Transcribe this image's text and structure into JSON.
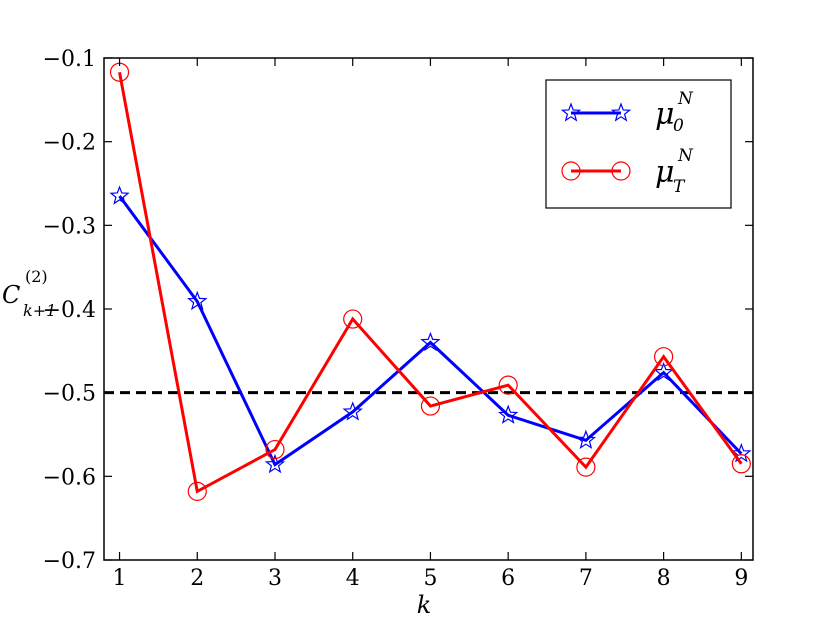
{
  "chart_data": {
    "type": "line",
    "title": "",
    "xlabel": "k",
    "ylabel": {
      "base": "C",
      "superscript": "(2)",
      "subscript": "k+1"
    },
    "x": [
      1,
      2,
      3,
      4,
      5,
      6,
      7,
      8,
      9
    ],
    "xlim": [
      0.8,
      9.15
    ],
    "ylim": [
      -0.7,
      -0.1
    ],
    "xticks": [
      "1",
      "2",
      "3",
      "4",
      "5",
      "6",
      "7",
      "8",
      "9"
    ],
    "yticks": [
      -0.7,
      -0.6,
      -0.5,
      -0.4,
      -0.3,
      -0.2,
      -0.1
    ],
    "ytick_labels": [
      "−0.7",
      "−0.6",
      "−0.5",
      "−0.4",
      "−0.3",
      "−0.2",
      "−0.1"
    ],
    "grid": false,
    "legend_position": "top-right",
    "series": [
      {
        "legend": {
          "base": "μ",
          "subscript": "0",
          "superscript": "N"
        },
        "color": "#0000ff",
        "marker": "star",
        "values": [
          -0.265,
          -0.391,
          -0.586,
          -0.523,
          -0.44,
          -0.527,
          -0.557,
          -0.476,
          -0.573
        ]
      },
      {
        "legend": {
          "base": "μ",
          "subscript": "T",
          "superscript": "N"
        },
        "color": "#ff0000",
        "marker": "circle",
        "values": [
          -0.117,
          -0.618,
          -0.568,
          -0.412,
          -0.516,
          -0.491,
          -0.589,
          -0.457,
          -0.585
        ]
      }
    ],
    "reference_line": {
      "y": -0.5,
      "color": "#000000",
      "style": "dashed"
    }
  }
}
